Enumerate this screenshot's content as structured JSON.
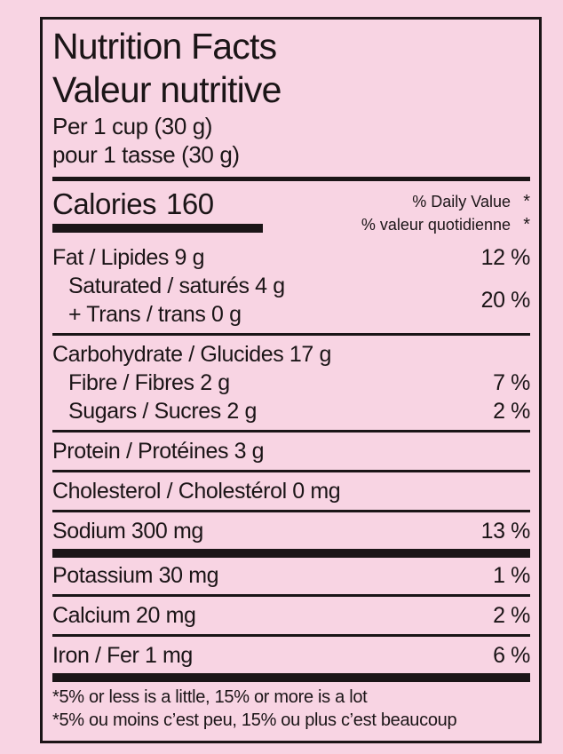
{
  "colors": {
    "background": "#f8d4e3",
    "ink": "#1b1517"
  },
  "header": {
    "title_en": "Nutrition Facts",
    "title_fr": "Valeur nutritive",
    "serving_en": "Per 1 cup (30 g)",
    "serving_fr": "pour 1 tasse (30 g)"
  },
  "calories": {
    "label": "Calories",
    "value": "160"
  },
  "daily_value": {
    "header_en": "% Daily Value",
    "header_fr": "% valeur quotidienne",
    "asterisk": "*"
  },
  "nutrients": {
    "fat": {
      "label": "Fat / Lipides 9 g",
      "dv": "12 %"
    },
    "saturated": {
      "label": "Saturated / saturés 4 g"
    },
    "trans": {
      "label": "+ Trans / trans 0 g"
    },
    "saturated_trans_dv": "20 %",
    "carbohydrate": {
      "label": "Carbohydrate / Glucides 17 g"
    },
    "fibre": {
      "label": "Fibre / Fibres 2 g",
      "dv": "7 %"
    },
    "sugars": {
      "label": "Sugars / Sucres 2 g",
      "dv": "2 %"
    },
    "protein": {
      "label": "Protein / Protéines 3 g"
    },
    "cholesterol": {
      "label": "Cholesterol / Cholestérol 0 mg"
    },
    "sodium": {
      "label": "Sodium 300 mg",
      "dv": "13 %"
    },
    "potassium": {
      "label": "Potassium 30 mg",
      "dv": "1 %"
    },
    "calcium": {
      "label": "Calcium 20 mg",
      "dv": "2 %"
    },
    "iron": {
      "label": "Iron / Fer 1 mg",
      "dv": "6 %"
    }
  },
  "footnotes": {
    "en": "*5% or less is a little, 15% or more is a lot",
    "fr": "*5% ou moins c’est peu, 15% ou plus c’est beaucoup"
  }
}
